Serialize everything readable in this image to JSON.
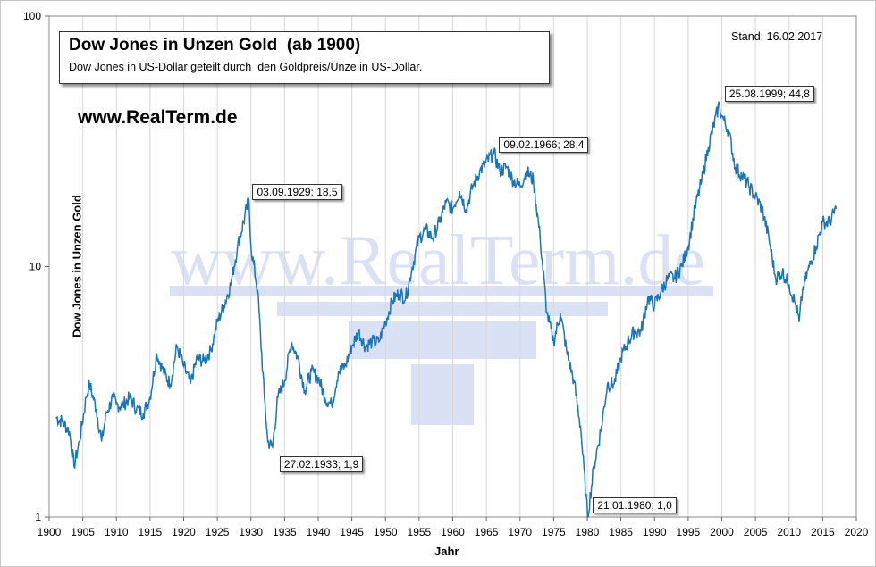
{
  "chart_data": {
    "type": "line",
    "title": "Dow Jones in Unzen Gold  (ab 1900)",
    "subtitle": "Dow Jones in US-Dollar geteilt durch  den Goldpreis/Unze in US-Dollar.",
    "watermark": "www.RealTerm.de",
    "source": "www.RealTerm.de",
    "date": "Stand: 16.02.2017",
    "xlabel": "Jahr",
    "ylabel": "Dow Jones in Unzen Gold",
    "x_ticks": [
      "1900",
      "1905",
      "1910",
      "1915",
      "1920",
      "1925",
      "1930",
      "1935",
      "1940",
      "1945",
      "1950",
      "1955",
      "1960",
      "1965",
      "1970",
      "1975",
      "1980",
      "1985",
      "1990",
      "1995",
      "2000",
      "2005",
      "2010",
      "2015",
      "2020"
    ],
    "y_ticks": [
      "1",
      "10",
      "100"
    ],
    "xlim": [
      1900,
      2020
    ],
    "ylim": [
      1,
      100
    ],
    "y_scale": "log",
    "grid": "vertical",
    "line_color": "#1a74b8",
    "series": [
      {
        "values": [
          [
            1901,
            2.5
          ],
          [
            1902,
            2.4
          ],
          [
            1903,
            2.2
          ],
          [
            1903.7,
            1.6
          ],
          [
            1904.5,
            2.0
          ],
          [
            1905.5,
            3.0
          ],
          [
            1906,
            3.4
          ],
          [
            1907,
            2.7
          ],
          [
            1907.8,
            2.0
          ],
          [
            1908.5,
            2.6
          ],
          [
            1909.5,
            3.0
          ],
          [
            1910,
            2.8
          ],
          [
            1911,
            2.8
          ],
          [
            1912,
            3.0
          ],
          [
            1913,
            2.7
          ],
          [
            1914,
            2.6
          ],
          [
            1915,
            3.0
          ],
          [
            1916,
            4.5
          ],
          [
            1917,
            3.8
          ],
          [
            1918,
            3.4
          ],
          [
            1919,
            4.8
          ],
          [
            1920,
            4.0
          ],
          [
            1921,
            3.4
          ],
          [
            1922,
            4.3
          ],
          [
            1923,
            4.2
          ],
          [
            1924,
            4.6
          ],
          [
            1925,
            6.0
          ],
          [
            1926,
            7.0
          ],
          [
            1927,
            8.5
          ],
          [
            1928,
            12
          ],
          [
            1929.7,
            18.5
          ],
          [
            1930,
            12
          ],
          [
            1931,
            8
          ],
          [
            1932,
            3
          ],
          [
            1932.5,
            2.0
          ],
          [
            1933.2,
            1.9
          ],
          [
            1934,
            3.0
          ],
          [
            1935,
            3.5
          ],
          [
            1936,
            5.0
          ],
          [
            1937,
            4.3
          ],
          [
            1938,
            3.2
          ],
          [
            1939,
            3.8
          ],
          [
            1940,
            3.6
          ],
          [
            1941,
            3.0
          ],
          [
            1942,
            2.8
          ],
          [
            1943,
            3.8
          ],
          [
            1944,
            4.0
          ],
          [
            1945,
            4.8
          ],
          [
            1946,
            5.5
          ],
          [
            1947,
            4.8
          ],
          [
            1948,
            5.0
          ],
          [
            1949,
            5.0
          ],
          [
            1950,
            6.0
          ],
          [
            1951,
            7.3
          ],
          [
            1952,
            7.8
          ],
          [
            1953,
            7.5
          ],
          [
            1954,
            10
          ],
          [
            1955,
            13
          ],
          [
            1956,
            14
          ],
          [
            1957,
            13
          ],
          [
            1958,
            15
          ],
          [
            1959,
            18
          ],
          [
            1960,
            17
          ],
          [
            1961,
            20
          ],
          [
            1962,
            17
          ],
          [
            1963,
            21
          ],
          [
            1964,
            24
          ],
          [
            1966.1,
            28.4
          ],
          [
            1967,
            24
          ],
          [
            1968,
            25
          ],
          [
            1969,
            22
          ],
          [
            1970,
            21
          ],
          [
            1971,
            24
          ],
          [
            1972,
            22
          ],
          [
            1973,
            13
          ],
          [
            1974,
            6.5
          ],
          [
            1975,
            5.0
          ],
          [
            1976,
            6.5
          ],
          [
            1977,
            4.5
          ],
          [
            1978,
            3.5
          ],
          [
            1979,
            2.3
          ],
          [
            1980.05,
            1.0
          ],
          [
            1981,
            1.6
          ],
          [
            1982,
            2.2
          ],
          [
            1983,
            3.4
          ],
          [
            1984,
            3.4
          ],
          [
            1985,
            4.3
          ],
          [
            1986,
            5.0
          ],
          [
            1987,
            5.5
          ],
          [
            1988,
            5.5
          ],
          [
            1989,
            7.5
          ],
          [
            1990,
            7.0
          ],
          [
            1991,
            8.0
          ],
          [
            1992,
            9.0
          ],
          [
            1993,
            9.0
          ],
          [
            1994,
            10
          ],
          [
            1995,
            12
          ],
          [
            1996,
            17
          ],
          [
            1997,
            22
          ],
          [
            1998,
            30
          ],
          [
            1999.65,
            44.8
          ],
          [
            2000,
            40
          ],
          [
            2001,
            35
          ],
          [
            2002,
            25
          ],
          [
            2003,
            23
          ],
          [
            2004,
            21
          ],
          [
            2005,
            19
          ],
          [
            2006,
            17
          ],
          [
            2007,
            13
          ],
          [
            2008,
            9
          ],
          [
            2009,
            9.5
          ],
          [
            2010,
            8.5
          ],
          [
            2011,
            7.0
          ],
          [
            2011.5,
            6.0
          ],
          [
            2012,
            8.0
          ],
          [
            2013,
            10
          ],
          [
            2014,
            12
          ],
          [
            2015,
            15
          ],
          [
            2016,
            15
          ],
          [
            2017,
            17
          ]
        ]
      }
    ],
    "annotations": [
      {
        "x": 1929.7,
        "y": 18.5,
        "label": "03.09.1929; 18,5"
      },
      {
        "x": 1933.2,
        "y": 1.9,
        "label": "27.02.1933; 1,9"
      },
      {
        "x": 1966.1,
        "y": 28.4,
        "label": "09.02.1966; 28,4"
      },
      {
        "x": 1980.05,
        "y": 1.0,
        "label": "21.01.1980; 1,0"
      },
      {
        "x": 1999.65,
        "y": 44.8,
        "label": "25.08.1999; 44,8"
      }
    ]
  }
}
